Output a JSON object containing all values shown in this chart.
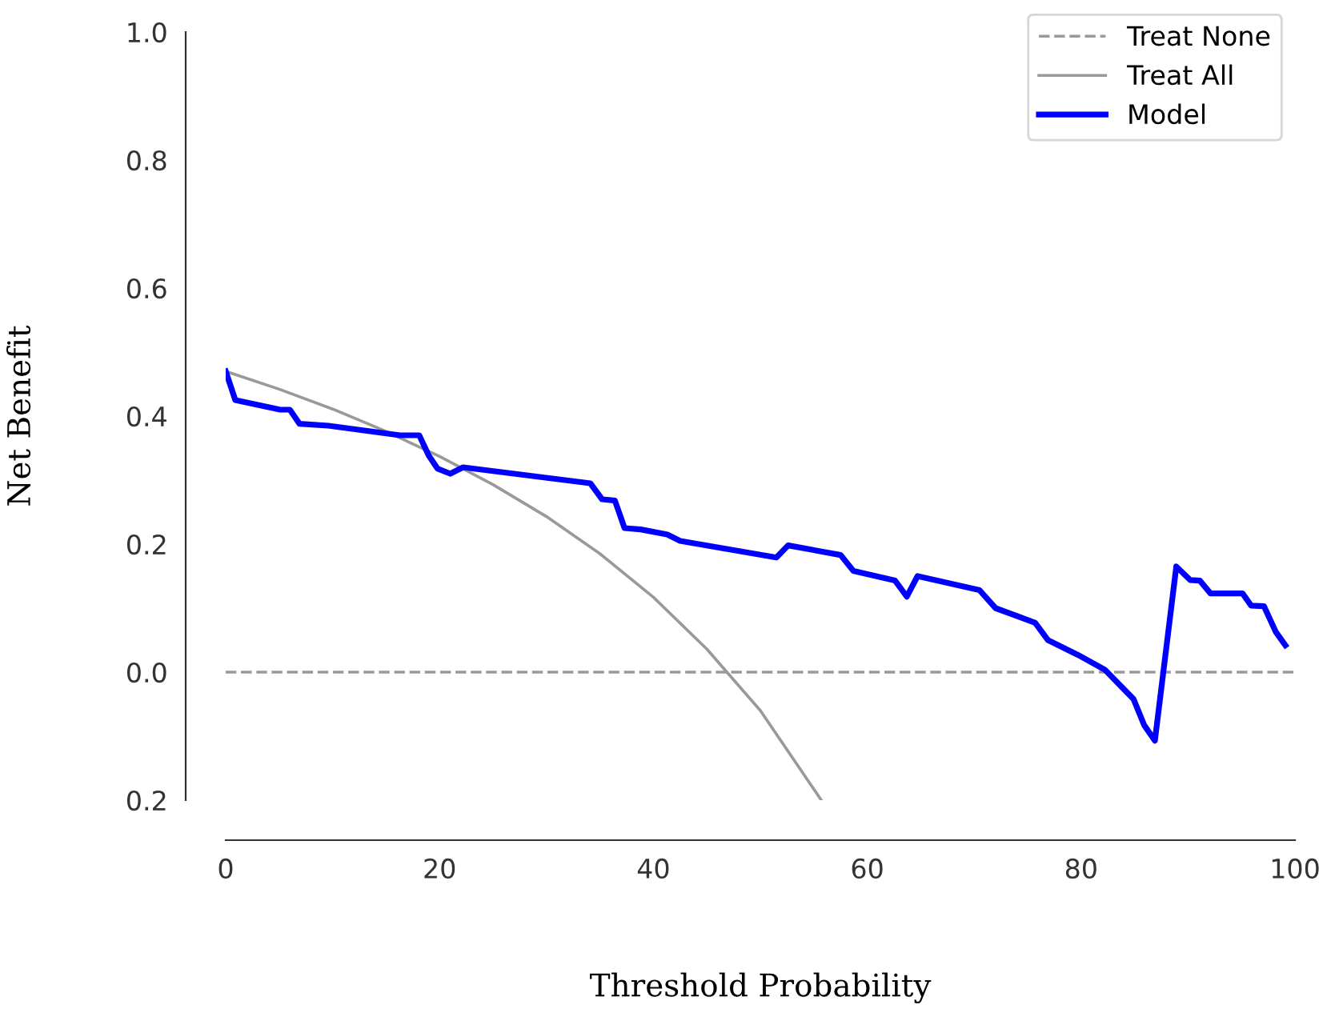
{
  "chart_data": {
    "type": "line",
    "xlabel": "Threshold Probability",
    "ylabel": "Net Benefit",
    "xlim": [
      0,
      100
    ],
    "ylim": [
      -0.2,
      1.0
    ],
    "xticks": [
      0,
      20,
      40,
      60,
      80,
      100
    ],
    "yticks": [
      {
        "value": -0.2,
        "label": "0.2"
      },
      {
        "value": 0.0,
        "label": "0.0"
      },
      0.2,
      0.4,
      0.6,
      0.8,
      {
        "value": 1.0,
        "label": "1.0"
      }
    ],
    "grid": false,
    "legend": "top right",
    "series": [
      {
        "name": "Treat None",
        "color": "#999999",
        "line_style": "dashed",
        "x": [
          0,
          100
        ],
        "values": [
          0,
          0
        ]
      },
      {
        "name": "Treat All",
        "color": "#999999",
        "line_style": "solid",
        "x": [
          0,
          5,
          10,
          15,
          20,
          25,
          30,
          35,
          40,
          45,
          50,
          55.7
        ],
        "values": [
          0.47,
          0.442,
          0.411,
          0.376,
          0.337,
          0.293,
          0.243,
          0.185,
          0.117,
          0.036,
          -0.06,
          -0.2
        ]
      },
      {
        "name": "Model",
        "color": "#0000ff",
        "line_style": "solid",
        "x": [
          0,
          0.9,
          5.1,
          6,
          6.9,
          9.6,
          16.3,
          18.1,
          19,
          19.8,
          21,
          22.2,
          34.1,
          35.2,
          36.4,
          37.3,
          38.8,
          41.3,
          42.5,
          51.5,
          52.6,
          57.5,
          58.7,
          62.6,
          63.7,
          64.7,
          70.5,
          72,
          75.7,
          76.9,
          79.7,
          82.2,
          84.9,
          85.9,
          86.9,
          88.9,
          90.2,
          91.1,
          92.1,
          95.1,
          95.9,
          97.1,
          98.2,
          99.1
        ],
        "values": [
          0.47,
          0.425,
          0.41,
          0.41,
          0.388,
          0.385,
          0.37,
          0.37,
          0.338,
          0.318,
          0.31,
          0.32,
          0.295,
          0.27,
          0.268,
          0.225,
          0.223,
          0.215,
          0.205,
          0.179,
          0.198,
          0.183,
          0.158,
          0.143,
          0.118,
          0.15,
          0.128,
          0.1,
          0.077,
          0.05,
          0.027,
          0.004,
          -0.042,
          -0.083,
          -0.107,
          0.165,
          0.144,
          0.143,
          0.123,
          0.123,
          0.104,
          0.103,
          0.063,
          0.042
        ]
      }
    ]
  }
}
